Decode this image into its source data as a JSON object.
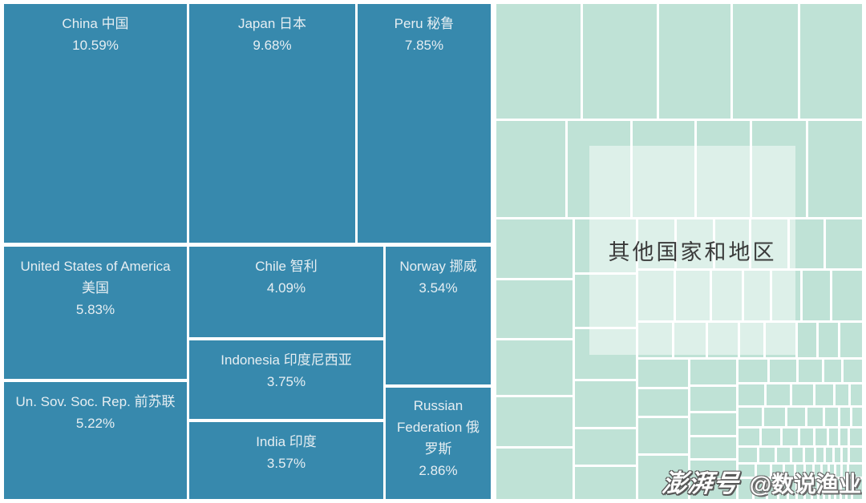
{
  "chart_data": {
    "type": "treemap",
    "unit": "%",
    "items": [
      {
        "name": "China 中国",
        "value": 10.59,
        "label": "10.59%"
      },
      {
        "name": "Japan 日本",
        "value": 9.68,
        "label": "9.68%"
      },
      {
        "name": "Peru 秘鲁",
        "value": 7.85,
        "label": "7.85%"
      },
      {
        "name": "United States of America 美国",
        "value": 5.83,
        "label": "5.83%"
      },
      {
        "name": "Un. Sov. Soc. Rep. 前苏联",
        "value": 5.22,
        "label": "5.22%"
      },
      {
        "name": "Chile 智利",
        "value": 4.09,
        "label": "4.09%"
      },
      {
        "name": "Indonesia 印度尼西亚",
        "value": 3.75,
        "label": "3.75%"
      },
      {
        "name": "India 印度",
        "value": 3.57,
        "label": "3.57%"
      },
      {
        "name": "Norway 挪威",
        "value": 3.54,
        "label": "3.54%"
      },
      {
        "name": "Russian Federation 俄罗斯",
        "value": 2.86,
        "label": "2.86%"
      },
      {
        "name": "其他国家和地区",
        "value": null,
        "label": ""
      }
    ],
    "layout_hint": "named countries as teal tiles on left half; unnamed remainder as many light-green tiles on right half with translucent centered label",
    "colors": {
      "country_tile": "#3789ad",
      "country_label": "#e6eef2",
      "other_tile": "#bfe2d6",
      "other_label": "#3b3b3b",
      "gap": "#ffffff"
    }
  },
  "watermark": {
    "brand": "澎湃号",
    "handle": "@数说渔业"
  }
}
